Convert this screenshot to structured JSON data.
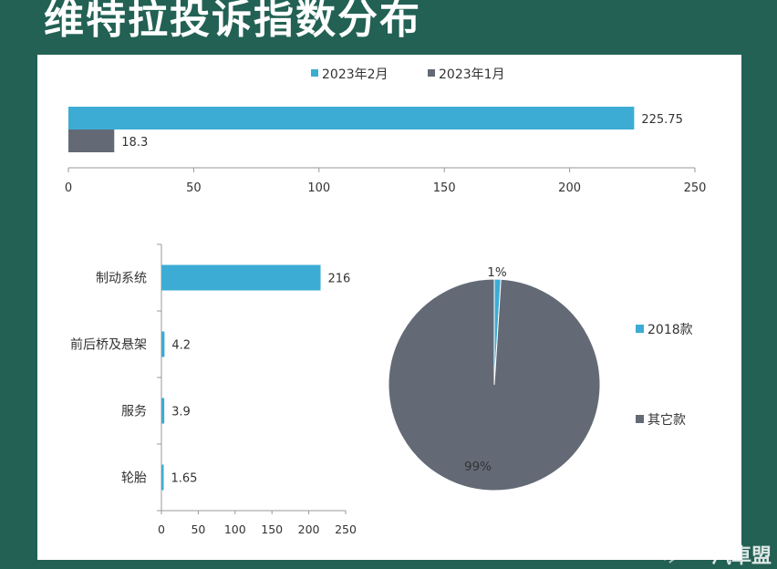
{
  "page": {
    "title": "维特拉投诉指数分布",
    "watermark": "汽車盟"
  },
  "colors": {
    "background": "#226154",
    "feb": "#3cacd4",
    "jan": "#636a76",
    "pie_2018": "#3cacd4",
    "pie_other": "#636a76"
  },
  "chart_data": [
    {
      "type": "bar",
      "orientation": "horizontal",
      "title": "",
      "legend": [
        "2023年2月",
        "2023年1月"
      ],
      "legend_position": "top",
      "series": [
        {
          "name": "2023年2月",
          "values": [
            225.75
          ],
          "value_labels": [
            "225.75"
          ]
        },
        {
          "name": "2023年1月",
          "values": [
            18.3
          ],
          "value_labels": [
            "18.3"
          ]
        }
      ],
      "xlim": [
        0,
        250
      ],
      "ticks": [
        0,
        50,
        100,
        150,
        200,
        250
      ],
      "tick_labels": [
        "0",
        "50",
        "100",
        "150",
        "200",
        "250"
      ]
    },
    {
      "type": "bar",
      "orientation": "horizontal",
      "title": "",
      "categories": [
        "制动系统",
        "前后桥及悬架",
        "服务",
        "轮胎"
      ],
      "values": [
        216,
        4.2,
        3.9,
        1.65
      ],
      "value_labels": [
        "216",
        "4.2",
        "3.9",
        "1.65"
      ],
      "xlim": [
        0,
        250
      ],
      "ticks": [
        0,
        50,
        100,
        150,
        200,
        250
      ],
      "tick_labels": [
        "0",
        "50",
        "100",
        "150",
        "200",
        "250"
      ]
    },
    {
      "type": "pie",
      "title": "",
      "labels": [
        "2018款",
        "其它款"
      ],
      "values": [
        1,
        99
      ],
      "value_labels": [
        "1%",
        "99%"
      ],
      "legend_position": "right"
    }
  ]
}
